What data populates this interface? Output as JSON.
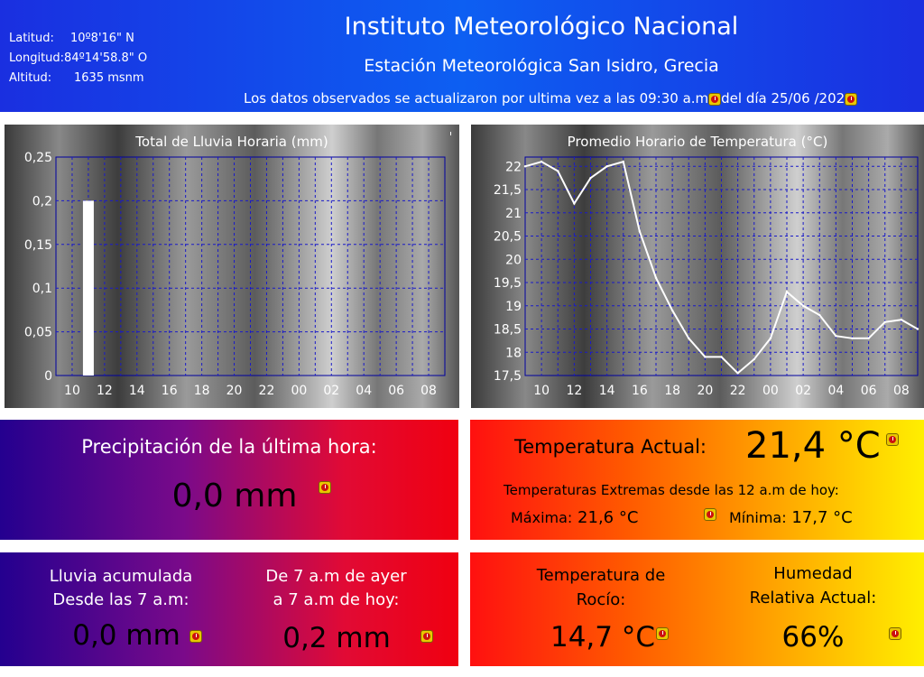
{
  "station": {
    "latitude_label": "Latitud:",
    "latitude_value": "10º8'16\" N",
    "longitude_label": "Longitud:",
    "longitude_value": "84º14'58.8\" O",
    "altitude_label": "Altitud:",
    "altitude_value": "1635 msnm",
    "institute": "Instituto Meteorológico Nacional",
    "station_name": "Estación Meteorológica  San Isidro, Grecia",
    "update_prefix": "Los datos observados se actualizaron por ultima vez a las  09:30 a.m",
    "update_mid": "del día  25/06 /202"
  },
  "colors": {
    "header_blue": "#1a2fe0",
    "warning_yellow": "#e8c800",
    "warning_red": "#cc1010"
  },
  "icons": {
    "warning": "warning-icon"
  },
  "chart_data": [
    {
      "type": "bar",
      "title": "Total de Lluvia Horaria (mm)",
      "x": [
        "09",
        "10",
        "11",
        "12",
        "13",
        "14",
        "15",
        "16",
        "17",
        "18",
        "19",
        "20",
        "21",
        "22",
        "23",
        "00",
        "01",
        "02",
        "03",
        "04",
        "05",
        "06",
        "07",
        "08",
        "09"
      ],
      "x_tick_labels": [
        "10",
        "12",
        "14",
        "16",
        "18",
        "20",
        "22",
        "00",
        "02",
        "04",
        "06",
        "08"
      ],
      "values": [
        0,
        0,
        0.2,
        0,
        0,
        0,
        0,
        0,
        0,
        0,
        0,
        0,
        0,
        0,
        0,
        0,
        0,
        0,
        0,
        0,
        0,
        0,
        0,
        0,
        0
      ],
      "y_tick_labels": [
        "0",
        "0,05",
        "0,1",
        "0,15",
        "0,2",
        "0,25"
      ],
      "ylim": [
        0,
        0.25
      ],
      "grid": true
    },
    {
      "type": "line",
      "title": "Promedio Horario de Temperatura (°C)",
      "x": [
        "09",
        "10",
        "11",
        "12",
        "13",
        "14",
        "15",
        "16",
        "17",
        "18",
        "19",
        "20",
        "21",
        "22",
        "23",
        "00",
        "01",
        "02",
        "03",
        "04",
        "05",
        "06",
        "07",
        "08",
        "09"
      ],
      "x_tick_labels": [
        "10",
        "12",
        "14",
        "16",
        "18",
        "20",
        "22",
        "00",
        "02",
        "04",
        "06",
        "08"
      ],
      "values": [
        22.0,
        22.1,
        21.9,
        21.2,
        21.75,
        22.0,
        22.1,
        20.6,
        19.6,
        18.9,
        18.3,
        17.9,
        17.9,
        17.55,
        17.85,
        18.3,
        19.3,
        19.0,
        18.8,
        18.35,
        18.3,
        18.3,
        18.65,
        18.7,
        18.5
      ],
      "y_tick_labels": [
        "17,5",
        "18",
        "18,5",
        "19",
        "19,5",
        "20",
        "20,5",
        "21",
        "21,5",
        "22"
      ],
      "ylim": [
        17.5,
        22.2
      ],
      "grid": true
    }
  ],
  "precip_hour": {
    "label": "Precipitación de la última hora:",
    "value": "0,0 mm"
  },
  "temp_now": {
    "label": "Temperatura Actual:",
    "value": "21,4 °C",
    "extremes_label": "Temperaturas Extremas desde las 12 a.m de hoy:",
    "max_label": "Máxima:",
    "max_value": "21,6 °C",
    "min_label": "Mínima:",
    "min_value": "17,7 °C"
  },
  "rain_accum": {
    "label_line1": "Lluvia acumulada",
    "label_line2": "Desde las 7 a.m:",
    "value": "0,0 mm"
  },
  "rain_24h": {
    "label_line1": "De 7 a.m de ayer",
    "label_line2": "a 7 a.m de hoy:",
    "value": "0,2 mm"
  },
  "dew": {
    "label_line1": "Temperatura de",
    "label_line2": "Rocío:",
    "value": "14,7 °C"
  },
  "humidity": {
    "label_line1": "Humedad",
    "label_line2": "Relativa Actual:",
    "value": "66%"
  }
}
